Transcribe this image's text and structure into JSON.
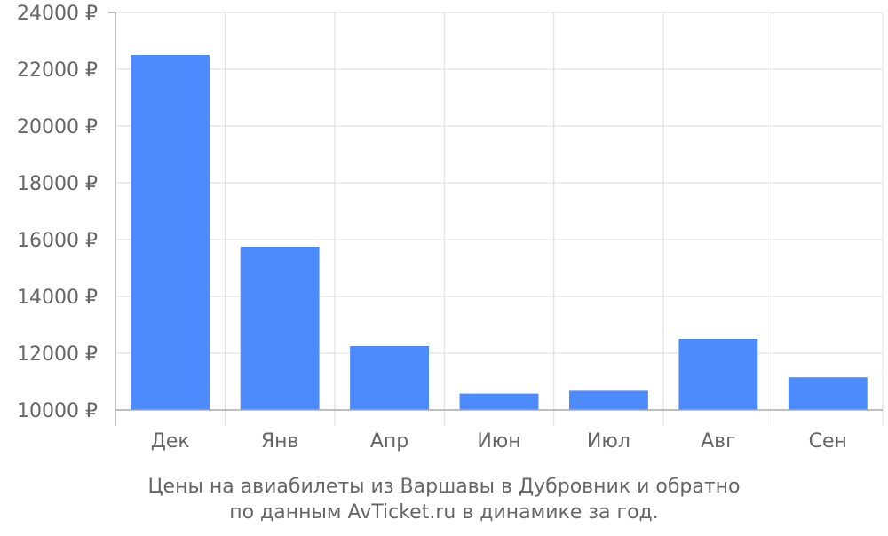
{
  "chart_data": {
    "type": "bar",
    "categories": [
      "Дек",
      "Янв",
      "Апр",
      "Июн",
      "Июл",
      "Авг",
      "Сен"
    ],
    "values": [
      22500,
      15750,
      12250,
      10575,
      10675,
      12500,
      11150
    ],
    "ylim": [
      10000,
      24000
    ],
    "yticks": [
      10000,
      12000,
      14000,
      16000,
      18000,
      20000,
      22000,
      24000
    ],
    "ytick_suffix": " ₽",
    "grid": true,
    "caption": [
      "Цены на авиабилеты из Варшавы в Дубровник и обратно",
      "по данным AvTicket.ru в динамике за год."
    ],
    "colors": {
      "bar": "#4d8afc",
      "grid": "#dddddd",
      "axis": "#aaaaaa",
      "text": "#666666"
    }
  }
}
